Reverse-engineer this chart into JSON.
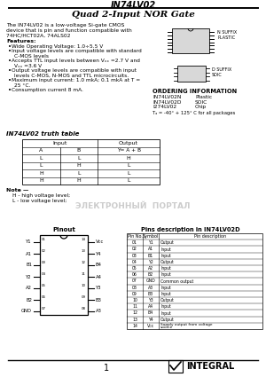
{
  "title": "IN74LV02",
  "subtitle": "Quad 2-Input NOR Gate",
  "description_lines": [
    "The IN74LV02 is a low-voltage Si-gate CMOS",
    "device that is pin and function compatible with",
    "74HC/HCT02A, 74ALS02"
  ],
  "features_title": "Features:",
  "feature_lines": [
    "Wide Operating Voltage: 1.0÷5.5 V",
    "Input voltage levels are compatible with standard",
    "C-MOS levels",
    "Accepts TTL input levels between Vₓₓ =2.7 V and",
    "Vₓₓ =3.6 V",
    "Output voltage levels are compatible with input",
    "levels C-MOS, N-MOS and TTL microcircuits.",
    "Maximum input current: 1.0 mkA; 0.1 mkA at T =",
    "25 °C.",
    "Consumption current 8 mA."
  ],
  "feature_bullets": [
    true,
    true,
    false,
    true,
    false,
    true,
    false,
    true,
    false,
    true
  ],
  "ordering_title": "ORDERING INFORMATION",
  "ordering": [
    [
      "IN74LV02N",
      "Plastic"
    ],
    [
      "IN74LV02D",
      "SOIC"
    ],
    [
      "I274LV02",
      "Chip"
    ]
  ],
  "ordering_note": "Tₐ = -40° + 125° C for all packages",
  "truth_title": "IN74LV02 truth table",
  "truth_rows": [
    [
      "L",
      "L",
      "H"
    ],
    [
      "L",
      "H",
      "L"
    ],
    [
      "H",
      "L",
      "L"
    ],
    [
      "H",
      "H",
      "L"
    ]
  ],
  "truth_note": "Note —",
  "truth_legend": [
    "H - high voltage level;",
    "L - low voltage level;"
  ],
  "pinout_title": "Pinout",
  "pinout_left": [
    "Y1",
    "A1",
    "B1",
    "Y2",
    "A2",
    "B2",
    "GND"
  ],
  "pinout_left_nums": [
    "01",
    "02",
    "03",
    "04",
    "05",
    "06",
    "07"
  ],
  "pinout_right": [
    "Vcc",
    "Y4",
    "B4",
    "A4",
    "Y3",
    "B3",
    "A3"
  ],
  "pinout_right_nums": [
    "14",
    "13",
    "12",
    "11",
    "10",
    "09",
    "08"
  ],
  "pin_desc_title": "Pins description in IN74LV02D",
  "pin_headers": [
    "Pin No.",
    "Symbol",
    "Pin description"
  ],
  "pins": [
    [
      "01",
      "Y1",
      "Output"
    ],
    [
      "02",
      "A1",
      "Input"
    ],
    [
      "03",
      "B1",
      "Input"
    ],
    [
      "04",
      "Y2",
      "Output"
    ],
    [
      "05",
      "A2",
      "Input"
    ],
    [
      "06",
      "B2",
      "Input"
    ],
    [
      "07",
      "GND",
      "Common output"
    ],
    [
      "08",
      "A3",
      "Input"
    ],
    [
      "09",
      "B3",
      "Input"
    ],
    [
      "10",
      "Y3",
      "Output"
    ],
    [
      "11",
      "A4",
      "Input"
    ],
    [
      "12",
      "B4",
      "Input"
    ],
    [
      "13",
      "Y4",
      "Output"
    ],
    [
      "14",
      "Vcc",
      "Supply output from voltage\nsource"
    ]
  ],
  "page_num": "1",
  "bg_color": "#ffffff"
}
